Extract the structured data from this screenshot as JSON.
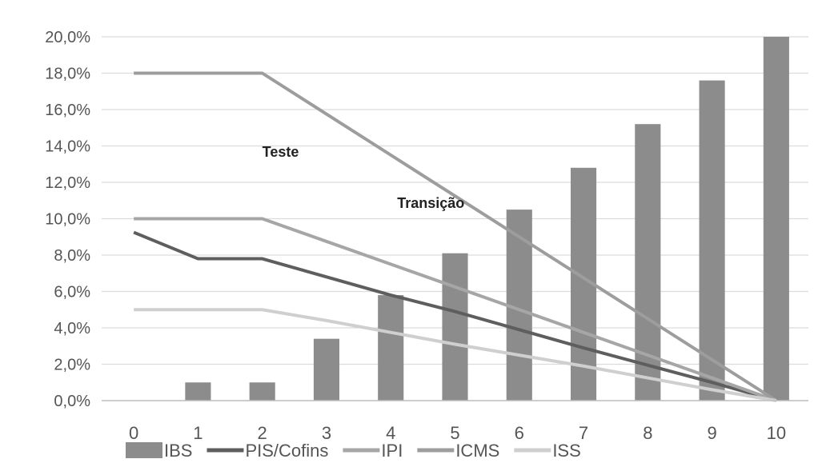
{
  "chart_data": {
    "type": "bar",
    "x": [
      "0",
      "1",
      "2",
      "3",
      "4",
      "5",
      "6",
      "7",
      "8",
      "9",
      "10"
    ],
    "ylim": [
      0,
      20
    ],
    "yticks": [
      "0,0%",
      "2,0%",
      "4,0%",
      "6,0%",
      "8,0%",
      "10,0%",
      "12,0%",
      "14,0%",
      "16,0%",
      "18,0%",
      "20,0%"
    ],
    "grid": true,
    "legend_position": "bottom",
    "bar_series": {
      "name": "IBS",
      "color": "#8c8c8c",
      "values": [
        0,
        1.0,
        1.0,
        3.4,
        5.8,
        8.1,
        10.5,
        12.8,
        15.2,
        17.6,
        20.0
      ]
    },
    "line_series": [
      {
        "name": "PIS/Cofins",
        "color": "#5e5e5e",
        "values": [
          9.25,
          7.8,
          7.8,
          6.8,
          5.8,
          4.9,
          3.9,
          2.9,
          1.95,
          1.0,
          0
        ]
      },
      {
        "name": "IPI",
        "color": "#a6a6a6",
        "values": [
          10,
          10,
          10,
          8.75,
          7.5,
          6.25,
          5.0,
          3.75,
          2.5,
          1.25,
          0
        ]
      },
      {
        "name": "ICMS",
        "color": "#9d9d9d",
        "values": [
          18,
          18,
          18,
          15.75,
          13.5,
          11.25,
          9.0,
          6.75,
          4.5,
          2.25,
          0
        ]
      },
      {
        "name": "ISS",
        "color": "#cfcfcf",
        "values": [
          5,
          5,
          5,
          4.4,
          3.75,
          3.1,
          2.5,
          1.9,
          1.25,
          0.6,
          0
        ]
      }
    ],
    "annotations": [
      {
        "text": "Teste",
        "x": 2,
        "y": 13.4
      },
      {
        "text": "Transição",
        "x": 4.1,
        "y": 10.6
      }
    ]
  }
}
